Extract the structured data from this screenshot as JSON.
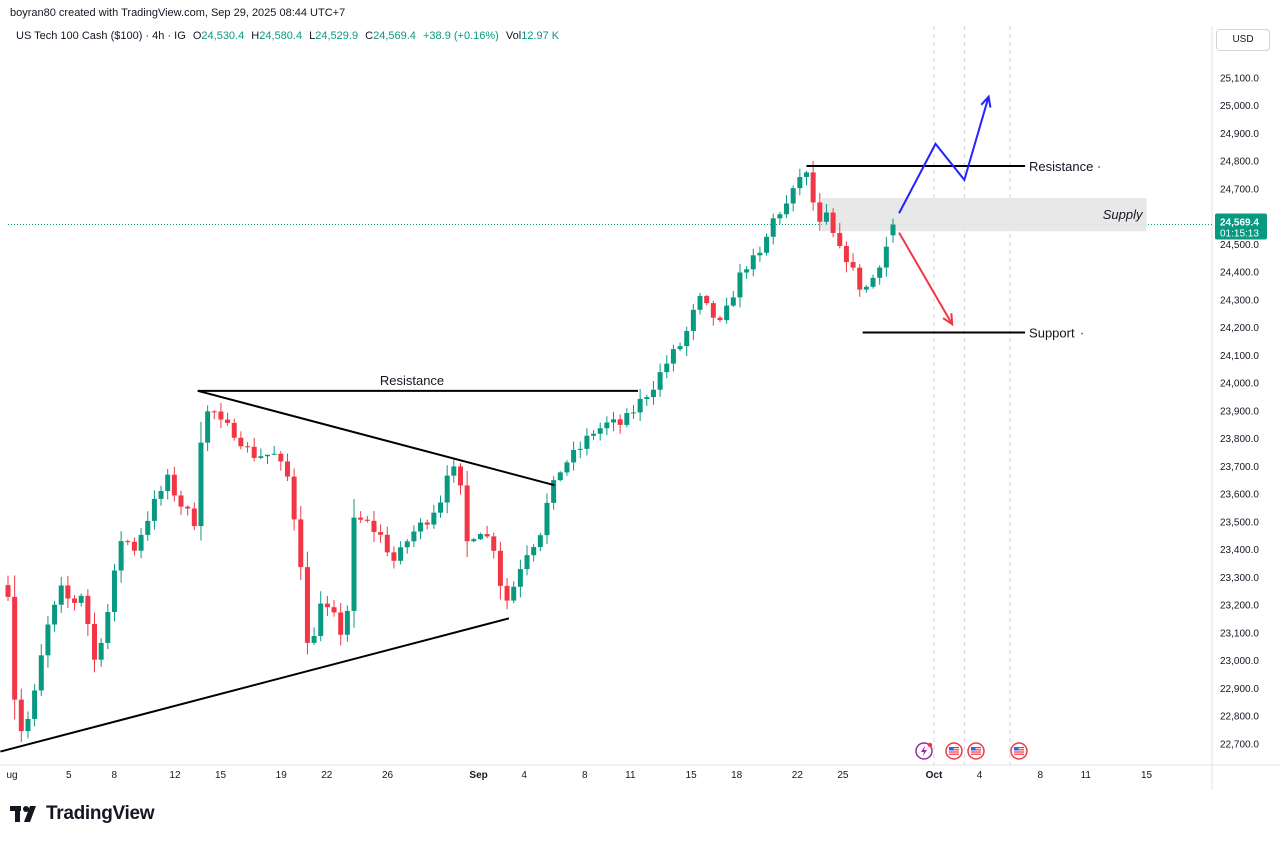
{
  "header": {
    "creator_text": "boyran80 created with TradingView.com, Sep 29, 2025 08:44 UTC+7",
    "symbol": "US Tech 100 Cash ($100) · 4h · IG",
    "open_label": "O",
    "open_value": "24,530.4",
    "high_label": "H",
    "high_value": "24,580.4",
    "low_label": "L",
    "low_value": "24,529.9",
    "close_label": "C",
    "close_value": "24,569.4",
    "change": "+38.9 (+0.16%)",
    "vol_label": "Vol",
    "vol_value": "12.97 K"
  },
  "currency_button": "USD",
  "brand": {
    "name": "TradingView"
  },
  "colors": {
    "up": "#089981",
    "down": "#f23645",
    "text": "#131722",
    "blue_arrow": "#2323ff",
    "red_arrow": "#f23645",
    "supply_zone": "#e6e6e6"
  },
  "chart_data": {
    "type": "candlestick",
    "instrument": "US Tech 100 Cash ($100)",
    "timeframe": "4h",
    "ylim": [
      22600,
      25250
    ],
    "y_ticks": [
      22700,
      22800,
      22900,
      23000,
      23100,
      23200,
      23300,
      23400,
      23500,
      23600,
      23700,
      23800,
      23900,
      24000,
      24100,
      24200,
      24300,
      24400,
      24500,
      24600,
      24700,
      24800,
      24900,
      25000,
      25100
    ],
    "y_tick_labels": [
      "22,700.0",
      "22,800.0",
      "22,900.0",
      "23,000.0",
      "23,100.0",
      "23,200.0",
      "23,300.0",
      "23,400.0",
      "23,500.0",
      "23,600.0",
      "23,700.0",
      "23,800.0",
      "23,900.0",
      "24,000.0",
      "24,100.0",
      "24,200.0",
      "24,300.0",
      "24,400.0",
      "24,500.0",
      "24,600.0",
      "24,700.0",
      "24,800.0",
      "24,900.0",
      "25,000.0",
      "25,100.0"
    ],
    "x_ticks": [
      {
        "label": "ug",
        "day": 1
      },
      {
        "label": "5",
        "day": 5
      },
      {
        "label": "8",
        "day": 8
      },
      {
        "label": "12",
        "day": 12
      },
      {
        "label": "15",
        "day": 15
      },
      {
        "label": "19",
        "day": 19
      },
      {
        "label": "22",
        "day": 22
      },
      {
        "label": "26",
        "day": 26
      },
      {
        "label": "Sep",
        "day": 32
      },
      {
        "label": "4",
        "day": 35
      },
      {
        "label": "8",
        "day": 39
      },
      {
        "label": "11",
        "day": 42
      },
      {
        "label": "15",
        "day": 46
      },
      {
        "label": "18",
        "day": 49
      },
      {
        "label": "22",
        "day": 53
      },
      {
        "label": "25",
        "day": 56
      },
      {
        "label": "Oct",
        "day": 62
      },
      {
        "label": "4",
        "day": 65
      },
      {
        "label": "8",
        "day": 69
      },
      {
        "label": "11",
        "day": 72
      },
      {
        "label": "15",
        "day": 76
      }
    ],
    "price_anchors": [
      [
        1,
        23250
      ],
      [
        1.6,
        22730
      ],
      [
        2.5,
        22800
      ],
      [
        3.5,
        23100
      ],
      [
        4.5,
        23250
      ],
      [
        5.2,
        23200
      ],
      [
        6,
        23250
      ],
      [
        6.6,
        22980
      ],
      [
        7.5,
        23150
      ],
      [
        8.5,
        23450
      ],
      [
        9.3,
        23400
      ],
      [
        10.5,
        23550
      ],
      [
        11.5,
        23650
      ],
      [
        12.5,
        23550
      ],
      [
        13.3,
        23500
      ],
      [
        13.7,
        23800
      ],
      [
        14.3,
        23920
      ],
      [
        15,
        23850
      ],
      [
        16,
        23820
      ],
      [
        17,
        23740
      ],
      [
        18.5,
        23740
      ],
      [
        19.5,
        23650
      ],
      [
        20.3,
        23350
      ],
      [
        20.8,
        23000
      ],
      [
        21.5,
        23200
      ],
      [
        22.5,
        23150
      ],
      [
        23.2,
        23070
      ],
      [
        23.8,
        23500
      ],
      [
        24.5,
        23500
      ],
      [
        25.5,
        23450
      ],
      [
        26.5,
        23350
      ],
      [
        27.5,
        23450
      ],
      [
        28.5,
        23500
      ],
      [
        29.5,
        23580
      ],
      [
        30,
        23700
      ],
      [
        30.7,
        23660
      ],
      [
        31.2,
        23420
      ],
      [
        32,
        23480
      ],
      [
        33,
        23410
      ],
      [
        33.7,
        23200
      ],
      [
        34.2,
        23250
      ],
      [
        35,
        23380
      ],
      [
        36,
        23450
      ],
      [
        36.6,
        23580
      ],
      [
        37.5,
        23700
      ],
      [
        38.5,
        23750
      ],
      [
        39.5,
        23820
      ],
      [
        40.5,
        23850
      ],
      [
        41.5,
        23850
      ],
      [
        42.5,
        23920
      ],
      [
        43.5,
        23990
      ],
      [
        44.5,
        24080
      ],
      [
        45.5,
        24150
      ],
      [
        46.5,
        24300
      ],
      [
        47.3,
        24250
      ],
      [
        48,
        24200
      ],
      [
        48.6,
        24300
      ],
      [
        49.5,
        24420
      ],
      [
        50.5,
        24450
      ],
      [
        51.5,
        24600
      ],
      [
        52.5,
        24650
      ],
      [
        53.2,
        24750
      ],
      [
        53.8,
        24740
      ],
      [
        54.3,
        24550
      ],
      [
        55,
        24600
      ],
      [
        55.6,
        24480
      ],
      [
        56.3,
        24450
      ],
      [
        57,
        24350
      ],
      [
        57.7,
        24340
      ],
      [
        58.3,
        24420
      ],
      [
        58.8,
        24480
      ],
      [
        59.3,
        24569.4
      ]
    ],
    "candle_count": 134,
    "last_price_label": "24,569.4",
    "countdown": "01:15:13",
    "annotations": {
      "triangle_resistance": {
        "label": "Resistance",
        "price": 23970,
        "from_day": 13.5,
        "to_day": 42.5
      },
      "upper_trendline": {
        "from": [
          13.5,
          23970
        ],
        "to": [
          37.0,
          23630
        ]
      },
      "lower_trendline": {
        "from": [
          0.5,
          22670
        ],
        "to": [
          34.0,
          23150
        ]
      },
      "top_resistance": {
        "label": "Resistance",
        "price": 24780,
        "from_day": 53.6,
        "to_day": 68.0
      },
      "supply_zone": {
        "label": "Supply",
        "from_price": 24545,
        "to_price": 24665,
        "from_day": 54.6,
        "to_day": 76.0
      },
      "support": {
        "label": "Support",
        "price": 24180,
        "from_day": 57.3,
        "to_day": 68.0
      },
      "bullish_arrow_path": [
        [
          59.7,
          24610
        ],
        [
          62.1,
          24860
        ],
        [
          64.0,
          24730
        ],
        [
          65.6,
          25030
        ]
      ],
      "bearish_arrow_path": [
        [
          59.7,
          24540
        ],
        [
          63.2,
          24210
        ]
      ],
      "vertical_markers_days": [
        62,
        64,
        67
      ],
      "event_icons": [
        "lightning-event",
        "us-flag-event",
        "us-flag-event",
        "us-flag-event"
      ]
    }
  }
}
